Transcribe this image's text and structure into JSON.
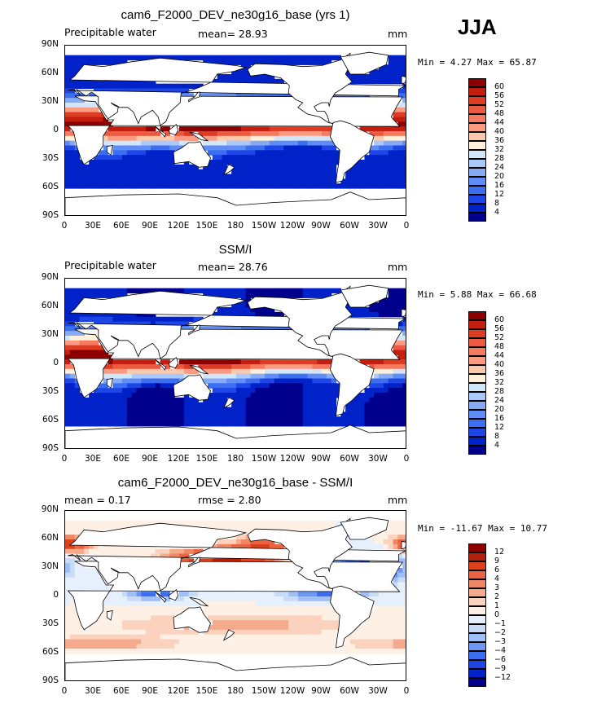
{
  "season": "JJA",
  "colors": {
    "abs_scale": [
      "#00008c",
      "#0022c8",
      "#1e46e6",
      "#3c6ef0",
      "#5f8cf5",
      "#87aaf5",
      "#aac8fa",
      "#d2e6fa",
      "#fff0dc",
      "#fac8aa",
      "#fa9b82",
      "#f57a5f",
      "#eb5a41",
      "#dc3c23",
      "#c31e0f",
      "#8c0000"
    ],
    "diff_scale": [
      "#00008c",
      "#0022c8",
      "#1e46e6",
      "#3c6ef0",
      "#6e96f5",
      "#a0bef8",
      "#c8dcfa",
      "#e6f0fc",
      "#fff0e6",
      "#fad2be",
      "#f5aa8c",
      "#f08764",
      "#eb6441",
      "#dc411e",
      "#b41e0a",
      "#8c0000"
    ]
  },
  "panels": [
    {
      "title": "cam6_F2000_DEV_ne30g16_base (yrs 1)",
      "left_label": "Precipitable water",
      "center_label": "mean=  28.93",
      "units": "mm",
      "minmax": "Min =   4.27 Max =  65.87",
      "scale_labels": [
        "60",
        "56",
        "52",
        "48",
        "44",
        "40",
        "36",
        "32",
        "28",
        "24",
        "20",
        "16",
        "12",
        "8",
        "4"
      ]
    },
    {
      "title": "SSM/I",
      "left_label": "Precipitable water",
      "center_label": "mean=  28.76",
      "units": "mm",
      "minmax": "Min =   5.88 Max =  66.68",
      "scale_labels": [
        "60",
        "56",
        "52",
        "48",
        "44",
        "40",
        "36",
        "32",
        "28",
        "24",
        "20",
        "16",
        "12",
        "8",
        "4"
      ]
    },
    {
      "title": "cam6_F2000_DEV_ne30g16_base - SSM/I",
      "left_label": "mean =   0.17",
      "center_label": "rmse =   2.80",
      "units": "mm",
      "minmax": "Min = -11.67 Max =  10.77",
      "scale_labels": [
        "12",
        "9",
        "6",
        "4",
        "3",
        "2",
        "1",
        "0",
        "−1",
        "−2",
        "−3",
        "−4",
        "−6",
        "−9",
        "−12"
      ]
    }
  ],
  "y_ticks": [
    "90N",
    "60N",
    "30N",
    "0",
    "30S",
    "60S",
    "90S"
  ],
  "x_ticks": [
    "0",
    "30E",
    "60E",
    "90E",
    "120E",
    "150E",
    "180",
    "150W",
    "120W",
    "90W",
    "60W",
    "30W",
    "0"
  ],
  "chart_data": [
    {
      "type": "heatmap",
      "title": "cam6_F2000_DEV_ne30g16_base (yrs 1)",
      "variable": "Precipitable water",
      "units": "mm",
      "mean": 28.93,
      "min": 4.27,
      "max": 65.87,
      "contour_levels": [
        4,
        8,
        12,
        16,
        20,
        24,
        28,
        32,
        36,
        40,
        44,
        48,
        52,
        56,
        60
      ],
      "x_range": [
        "0",
        "0"
      ],
      "y_range": [
        "90S",
        "90N"
      ]
    },
    {
      "type": "heatmap",
      "title": "SSM/I",
      "variable": "Precipitable water",
      "units": "mm",
      "mean": 28.76,
      "min": 5.88,
      "max": 66.68,
      "contour_levels": [
        4,
        8,
        12,
        16,
        20,
        24,
        28,
        32,
        36,
        40,
        44,
        48,
        52,
        56,
        60
      ],
      "x_range": [
        "0",
        "0"
      ],
      "y_range": [
        "90S",
        "90N"
      ]
    },
    {
      "type": "heatmap",
      "title": "cam6_F2000_DEV_ne30g16_base - SSM/I",
      "units": "mm",
      "mean": 0.17,
      "rmse": 2.8,
      "min": -11.67,
      "max": 10.77,
      "contour_levels": [
        -12,
        -9,
        -6,
        -4,
        -3,
        -2,
        -1,
        0,
        1,
        2,
        3,
        4,
        6,
        9,
        12
      ],
      "x_range": [
        "0",
        "0"
      ],
      "y_range": [
        "90S",
        "90N"
      ]
    }
  ]
}
